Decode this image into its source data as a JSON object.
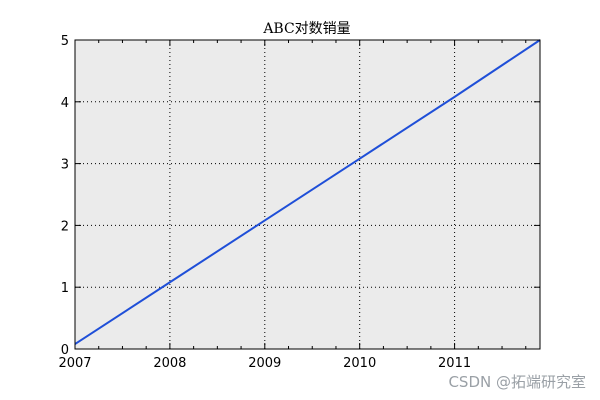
{
  "chart_data": {
    "type": "line",
    "title": "ABC对数销量",
    "xlabel": "",
    "ylabel": "",
    "xlim": [
      2007,
      2011.9
    ],
    "ylim": [
      0,
      5
    ],
    "xticks": [
      2007,
      2008,
      2009,
      2010,
      2011
    ],
    "yticks": [
      0,
      1,
      2,
      3,
      4,
      5
    ],
    "grid": true,
    "series": [
      {
        "color": "#1f4fd8",
        "x": [
          2007,
          2008,
          2009,
          2010,
          2011,
          2011.9
        ],
        "y": [
          0.08,
          1.08,
          2.08,
          3.08,
          4.08,
          5.0
        ]
      }
    ],
    "plot_background": "#ebebeb"
  },
  "watermark": "CSDN @拓端研究室"
}
